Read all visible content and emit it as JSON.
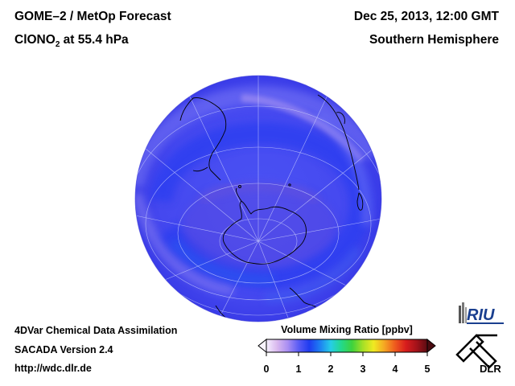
{
  "header": {
    "title": "GOME–2 / MetOp Forecast",
    "species_prefix": "ClONO",
    "species_sub": "2",
    "level": " at 55.4 hPa",
    "datetime": "Dec 25, 2013, 12:00 GMT",
    "region": "Southern Hemisphere"
  },
  "footer": {
    "line1": "4DVar Chemical Data Assimilation",
    "line2": "SACADA Version 2.4",
    "line3": "http://wdc.dlr.de"
  },
  "colorbar": {
    "title": "Volume Mixing Ratio [ppbv]",
    "ticks": [
      "0",
      "1",
      "2",
      "3",
      "4",
      "5"
    ],
    "min": 0,
    "max": 5,
    "stops": [
      "#f5f0ff",
      "#d9b8ee",
      "#a98ef2",
      "#5a5cf4",
      "#1f3cf0",
      "#1e7ff2",
      "#26cde8",
      "#23d98a",
      "#3fd23c",
      "#a6e026",
      "#f0ea22",
      "#f5a623",
      "#ee5a1e",
      "#d81d1d",
      "#a4121a",
      "#5a0c12"
    ]
  },
  "map": {
    "projection": "orthographic",
    "hemisphere": "south",
    "base_color": "#4b50f2"
  },
  "logos": {
    "riu": "RIU",
    "dlr": "DLR"
  }
}
